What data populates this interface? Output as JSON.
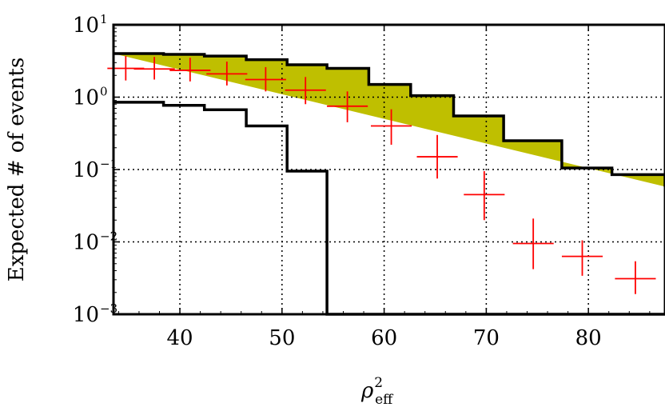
{
  "chart_data": {
    "type": "area",
    "xlabel": {
      "symbol": "ρ",
      "superscript": "2",
      "subscript": "eff"
    },
    "ylabel": "Expected # of events",
    "xlim": [
      33.5,
      87.5
    ],
    "ylim": [
      0.001,
      10
    ],
    "yscale": "log",
    "grid": true,
    "x_ticks": [
      {
        "value": 40,
        "label": "40"
      },
      {
        "value": 50,
        "label": "50"
      },
      {
        "value": 60,
        "label": "60"
      },
      {
        "value": 70,
        "label": "70"
      },
      {
        "value": 80,
        "label": "80"
      }
    ],
    "y_ticks": [
      {
        "value": 10,
        "base": "10",
        "exp": "1"
      },
      {
        "value": 1,
        "base": "10",
        "exp": "0"
      },
      {
        "value": 0.1,
        "base": "10",
        "exp": "−1"
      },
      {
        "value": 0.01,
        "base": "10",
        "exp": "−2"
      },
      {
        "value": 0.001,
        "base": "10",
        "exp": "−3"
      }
    ],
    "band_color": "#bfbf00",
    "marker_color": "#ff0000",
    "band": {
      "edges": [
        33.5,
        38.4,
        42.4,
        46.5,
        50.5,
        54.4,
        58.5,
        62.6,
        66.8,
        71.7,
        77.4,
        82.3,
        87.5
      ],
      "upper": [
        4.0,
        3.9,
        3.7,
        3.3,
        2.8,
        2.5,
        1.5,
        1.05,
        0.55,
        0.25,
        0.105,
        0.085,
        0.058
      ],
      "lower": [
        0.85,
        0.77,
        0.67,
        0.4,
        0.095,
        0.001,
        0.001,
        0.001,
        0.001,
        0.001,
        0.001,
        0.001,
        0.001
      ]
    },
    "series": [
      {
        "marker": "+",
        "x": [
          34.7,
          37.5,
          41.0,
          44.6,
          48.4,
          52.3,
          56.4,
          60.7,
          65.2,
          69.8,
          74.6,
          79.4,
          84.6
        ],
        "xerr": [
          1.8,
          2.0,
          2.0,
          2.0,
          2.0,
          2.0,
          2.0,
          2.0,
          2.0,
          2.0,
          2.0,
          2.0,
          2.0
        ],
        "y": [
          2.5,
          2.45,
          2.35,
          2.1,
          1.75,
          1.25,
          0.75,
          0.4,
          0.15,
          0.045,
          0.0095,
          0.0063,
          0.0031
        ],
        "ylo": [
          1.7,
          1.75,
          1.65,
          1.45,
          1.2,
          0.8,
          0.45,
          0.22,
          0.075,
          0.02,
          0.0042,
          0.0034,
          0.0019
        ],
        "yhi": [
          3.7,
          3.6,
          3.5,
          3.1,
          2.6,
          1.9,
          1.2,
          0.68,
          0.3,
          0.095,
          0.021,
          0.0105,
          0.0054
        ]
      }
    ]
  }
}
